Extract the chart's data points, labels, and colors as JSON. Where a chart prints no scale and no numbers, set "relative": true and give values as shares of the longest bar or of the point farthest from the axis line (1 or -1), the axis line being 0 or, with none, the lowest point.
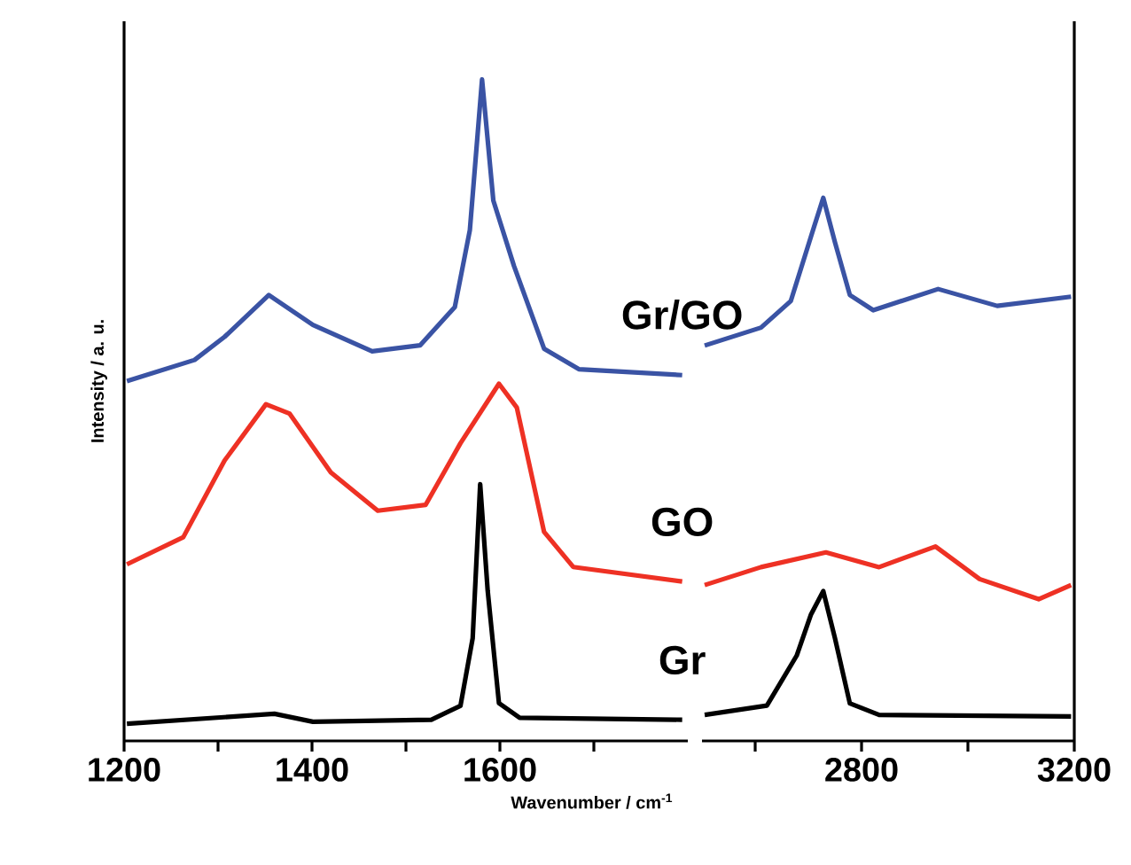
{
  "chart_data": [
    {
      "type": "line",
      "relative": true,
      "ylabel": "Intensity / a. u.",
      "xlabel": "Wavenumber / cm$^{-1}$",
      "xlim": [
        1200,
        1800
      ],
      "xticks": [
        1200,
        {
          "value": 1300,
          "label": null
        },
        1400,
        {
          "value": 1500,
          "label": null
        },
        1600,
        {
          "value": 1700,
          "label": null
        }
      ],
      "tick_labels": "x",
      "grid": false,
      "series": [
        {
          "name": "Gr/GO",
          "color": "#3a53a4",
          "x": [
            1203,
            1275,
            1307,
            1354,
            1401,
            1464,
            1515,
            1552,
            1568,
            1581,
            1593,
            1615,
            1647,
            1684,
            1794
          ],
          "values": [
            0.544,
            0.576,
            0.611,
            0.674,
            0.629,
            0.589,
            0.598,
            0.656,
            0.772,
            1.0,
            0.817,
            0.718,
            0.593,
            0.562,
            0.553
          ]
        },
        {
          "name": "GO",
          "color": "#ee3124",
          "x": [
            1203,
            1263,
            1307,
            1351,
            1376,
            1420,
            1470,
            1521,
            1558,
            1599,
            1618,
            1647,
            1678,
            1794
          ],
          "values": [
            0.267,
            0.308,
            0.424,
            0.509,
            0.495,
            0.406,
            0.348,
            0.357,
            0.45,
            0.54,
            0.504,
            0.316,
            0.263,
            0.241
          ]
        },
        {
          "name": "Gr",
          "color": "#000000",
          "x": [
            1203,
            1360,
            1401,
            1527,
            1558,
            1571,
            1579,
            1587,
            1599,
            1621,
            1794
          ],
          "values": [
            0.026,
            0.041,
            0.029,
            0.032,
            0.053,
            0.155,
            0.388,
            0.227,
            0.057,
            0.035,
            0.032
          ]
        }
      ]
    },
    {
      "type": "line",
      "relative": true,
      "xlim": [
        2500,
        3200
      ],
      "xticks": [
        {
          "value": 2600,
          "label": null
        },
        2800,
        {
          "value": 3000,
          "label": null
        },
        3200
      ],
      "tick_labels": "x",
      "grid": false,
      "series": [
        {
          "color": "#3a53a4",
          "x": [
            2505,
            2611,
            2667,
            2705,
            2728,
            2750,
            2778,
            2822,
            2944,
            3055,
            3194
          ],
          "values": [
            0.728,
            0.761,
            0.81,
            0.929,
            1.0,
            0.918,
            0.821,
            0.793,
            0.832,
            0.801,
            0.818
          ]
        },
        {
          "color": "#ee3124",
          "x": [
            2505,
            2611,
            2733,
            2833,
            2939,
            3022,
            3133,
            3194
          ],
          "values": [
            0.287,
            0.32,
            0.347,
            0.32,
            0.358,
            0.298,
            0.261,
            0.287
          ]
        },
        {
          "color": "#000000",
          "x": [
            2505,
            2622,
            2678,
            2705,
            2728,
            2750,
            2778,
            2833,
            3194
          ],
          "values": [
            0.048,
            0.065,
            0.157,
            0.233,
            0.276,
            0.189,
            0.069,
            0.048,
            0.045
          ]
        }
      ]
    }
  ]
}
